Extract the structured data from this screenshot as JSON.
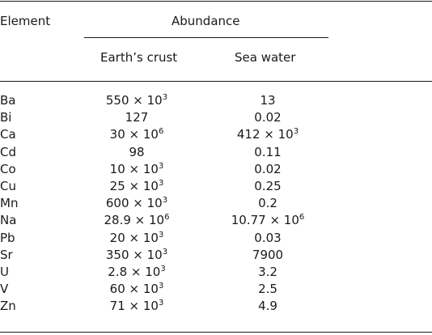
{
  "table": {
    "headers": {
      "element": "Element",
      "abundance": "Abundance",
      "earths_crust": "Earth’s crust",
      "sea_water": "Sea water"
    },
    "rows": [
      {
        "element": "Ba",
        "crust": {
          "base": "550 × 10",
          "exp": "3"
        },
        "sea": {
          "base": "13",
          "exp": ""
        }
      },
      {
        "element": "Bi",
        "crust": {
          "base": "127",
          "exp": ""
        },
        "sea": {
          "base": "0.02",
          "exp": ""
        }
      },
      {
        "element": "Ca",
        "crust": {
          "base": "30 × 10",
          "exp": "6"
        },
        "sea": {
          "base": "412 × 10",
          "exp": "3"
        }
      },
      {
        "element": "Cd",
        "crust": {
          "base": "98",
          "exp": ""
        },
        "sea": {
          "base": "0.11",
          "exp": ""
        }
      },
      {
        "element": "Co",
        "crust": {
          "base": "10 × 10",
          "exp": "3"
        },
        "sea": {
          "base": "0.02",
          "exp": ""
        }
      },
      {
        "element": "Cu",
        "crust": {
          "base": "25 × 10",
          "exp": "3"
        },
        "sea": {
          "base": "0.25",
          "exp": ""
        }
      },
      {
        "element": "Mn",
        "crust": {
          "base": "600 × 10",
          "exp": "3"
        },
        "sea": {
          "base": "0.2",
          "exp": ""
        }
      },
      {
        "element": "Na",
        "crust": {
          "base": "28.9 × 10",
          "exp": "6"
        },
        "sea": {
          "base": "10.77 × 10",
          "exp": "6"
        }
      },
      {
        "element": "Pb",
        "crust": {
          "base": "20 × 10",
          "exp": "3"
        },
        "sea": {
          "base": "0.03",
          "exp": ""
        }
      },
      {
        "element": "Sr",
        "crust": {
          "base": "350 × 10",
          "exp": "3"
        },
        "sea": {
          "base": "7900",
          "exp": ""
        }
      },
      {
        "element": "U",
        "crust": {
          "base": "2.8 × 10",
          "exp": "3"
        },
        "sea": {
          "base": "3.2",
          "exp": ""
        }
      },
      {
        "element": "V",
        "crust": {
          "base": "60 × 10",
          "exp": "3"
        },
        "sea": {
          "base": "2.5",
          "exp": ""
        }
      },
      {
        "element": "Zn",
        "crust": {
          "base": "71 × 10",
          "exp": "3"
        },
        "sea": {
          "base": "4.9",
          "exp": ""
        }
      }
    ]
  }
}
